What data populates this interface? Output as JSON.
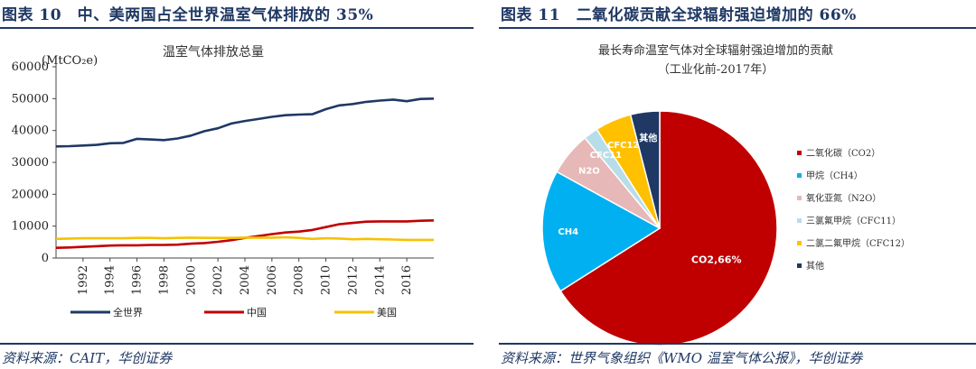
{
  "left": {
    "figure_title": "图表 10　中、美两国占全世界温室气体排放的 35%",
    "source": "资料来源：CAIT，华创证券"
  },
  "right": {
    "figure_title": "图表 11　二氧化碳贡献全球辐射强迫增加的 66%",
    "source": "资料来源：世界气象组织《WMO 温室气体公报》，华创证券"
  },
  "colors": {
    "title_blue": "#1f3864",
    "world": "#1f3864",
    "china": "#c00000",
    "usa": "#f5c200"
  },
  "chart_data": [
    {
      "type": "line",
      "title": "温室气体排放总量",
      "ylabel": "(MtCO₂e)",
      "xlabel": "",
      "ylim": [
        0,
        60000
      ],
      "yticks": [
        "0",
        "10000",
        "20000",
        "30000",
        "40000",
        "50000",
        "60000"
      ],
      "xticks": [
        "1992",
        "1994",
        "1996",
        "1998",
        "2000",
        "2002",
        "2004",
        "2006",
        "2008",
        "2010",
        "2012",
        "2014",
        "2016"
      ],
      "x": [
        1990,
        1991,
        1992,
        1993,
        1994,
        1995,
        1996,
        1997,
        1998,
        1999,
        2000,
        2001,
        2002,
        2003,
        2004,
        2005,
        2006,
        2007,
        2008,
        2009,
        2010,
        2011,
        2012,
        2013,
        2014,
        2015,
        2016,
        2017,
        2018
      ],
      "series": [
        {
          "name": "全世界",
          "color": "#1f3864",
          "values": [
            35000,
            35100,
            35300,
            35500,
            36000,
            36100,
            37400,
            37200,
            37000,
            37500,
            38400,
            39800,
            40700,
            42200,
            43000,
            43600,
            44300,
            44800,
            45000,
            45100,
            46700,
            47900,
            48300,
            49000,
            49400,
            49700,
            49200,
            49900,
            50000
          ]
        },
        {
          "name": "中国",
          "color": "#c00000",
          "values": [
            3200,
            3300,
            3500,
            3700,
            3900,
            4000,
            4000,
            4100,
            4100,
            4200,
            4500,
            4700,
            5100,
            5600,
            6300,
            6900,
            7500,
            8000,
            8300,
            8800,
            9700,
            10600,
            11000,
            11400,
            11500,
            11500,
            11500,
            11700,
            11800
          ]
        },
        {
          "name": "美国",
          "color": "#f5c200",
          "values": [
            6000,
            6100,
            6200,
            6200,
            6200,
            6200,
            6300,
            6300,
            6200,
            6300,
            6400,
            6300,
            6300,
            6300,
            6400,
            6400,
            6400,
            6500,
            6300,
            6000,
            6200,
            6100,
            5900,
            6000,
            5900,
            5800,
            5700,
            5700,
            5700
          ]
        }
      ],
      "legend_position": "bottom"
    },
    {
      "type": "pie",
      "title": "最长寿命温室气体对全球辐射强迫增加的贡献",
      "subtitle": "（工业化前-2017年）",
      "slices": [
        {
          "name": "二氧化碳（CO2）",
          "label": "CO2,66%",
          "value": 66,
          "color": "#c00000"
        },
        {
          "name": "甲烷（CH4）",
          "label": "CH4",
          "value": 17,
          "color": "#00b0f0"
        },
        {
          "name": "氧化亚氮（N2O）",
          "label": "N2O",
          "value": 6,
          "color": "#e6b8b7"
        },
        {
          "name": "三氯氟甲烷（CFC11）",
          "label": "CFC11",
          "value": 2,
          "color": "#b7dee8"
        },
        {
          "name": "二氯二氟甲烷（CFC12）",
          "label": "CFC12",
          "value": 5,
          "color": "#ffc000"
        },
        {
          "name": "其他",
          "label": "其他",
          "value": 4,
          "color": "#1f3864"
        }
      ],
      "legend_position": "right"
    }
  ]
}
